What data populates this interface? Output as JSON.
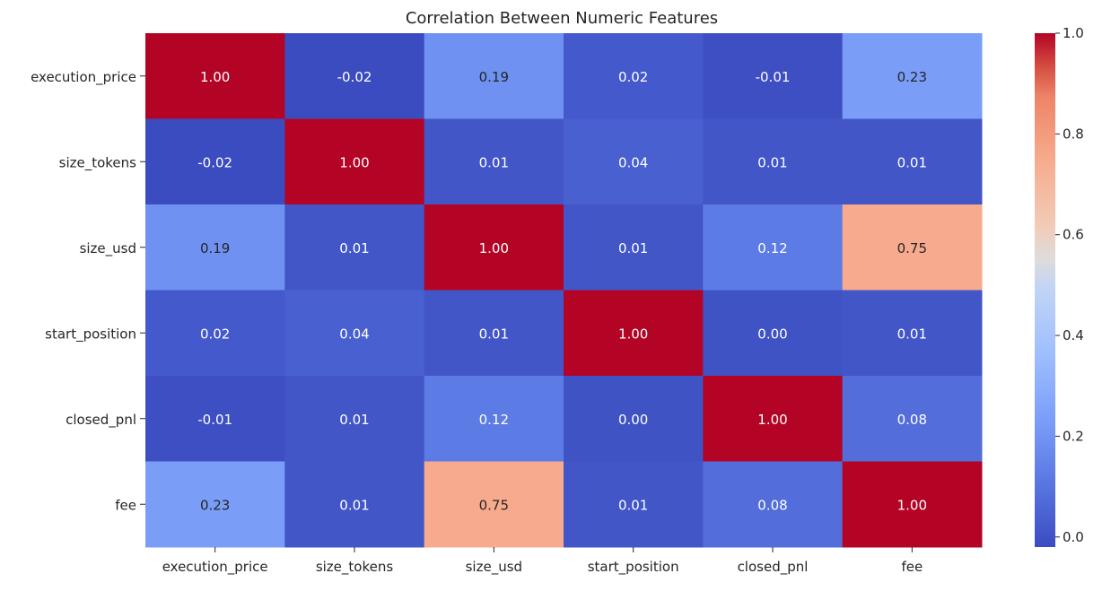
{
  "chart_data": {
    "type": "heatmap",
    "title": "Correlation Between Numeric Features",
    "xlabel": "",
    "ylabel": "",
    "row_labels": [
      "execution_price",
      "size_tokens",
      "size_usd",
      "start_position",
      "closed_pnl",
      "fee"
    ],
    "col_labels": [
      "execution_price",
      "size_tokens",
      "size_usd",
      "start_position",
      "closed_pnl",
      "fee"
    ],
    "values": [
      [
        1.0,
        -0.02,
        0.19,
        0.02,
        -0.01,
        0.23
      ],
      [
        -0.02,
        1.0,
        0.01,
        0.04,
        0.01,
        0.01
      ],
      [
        0.19,
        0.01,
        1.0,
        0.01,
        0.12,
        0.75
      ],
      [
        0.02,
        0.04,
        0.01,
        1.0,
        0.0,
        0.01
      ],
      [
        -0.01,
        0.01,
        0.12,
        0.0,
        1.0,
        0.08
      ],
      [
        0.23,
        0.01,
        0.75,
        0.01,
        0.08,
        1.0
      ]
    ],
    "annotation_format": "0.00",
    "colormap": "coolwarm",
    "colorbar": {
      "range": [
        -0.02,
        1.0
      ],
      "ticks": [
        0.0,
        0.2,
        0.4,
        0.6,
        0.8,
        1.0
      ],
      "tick_labels": [
        "0.0",
        "0.2",
        "0.4",
        "0.6",
        "0.8",
        "1.0"
      ]
    },
    "colors": {
      "low": "#3b4cc0",
      "mid": "#dddddd",
      "high": "#b40426",
      "text_dark": "#262626",
      "text_light": "#ffffff"
    }
  }
}
